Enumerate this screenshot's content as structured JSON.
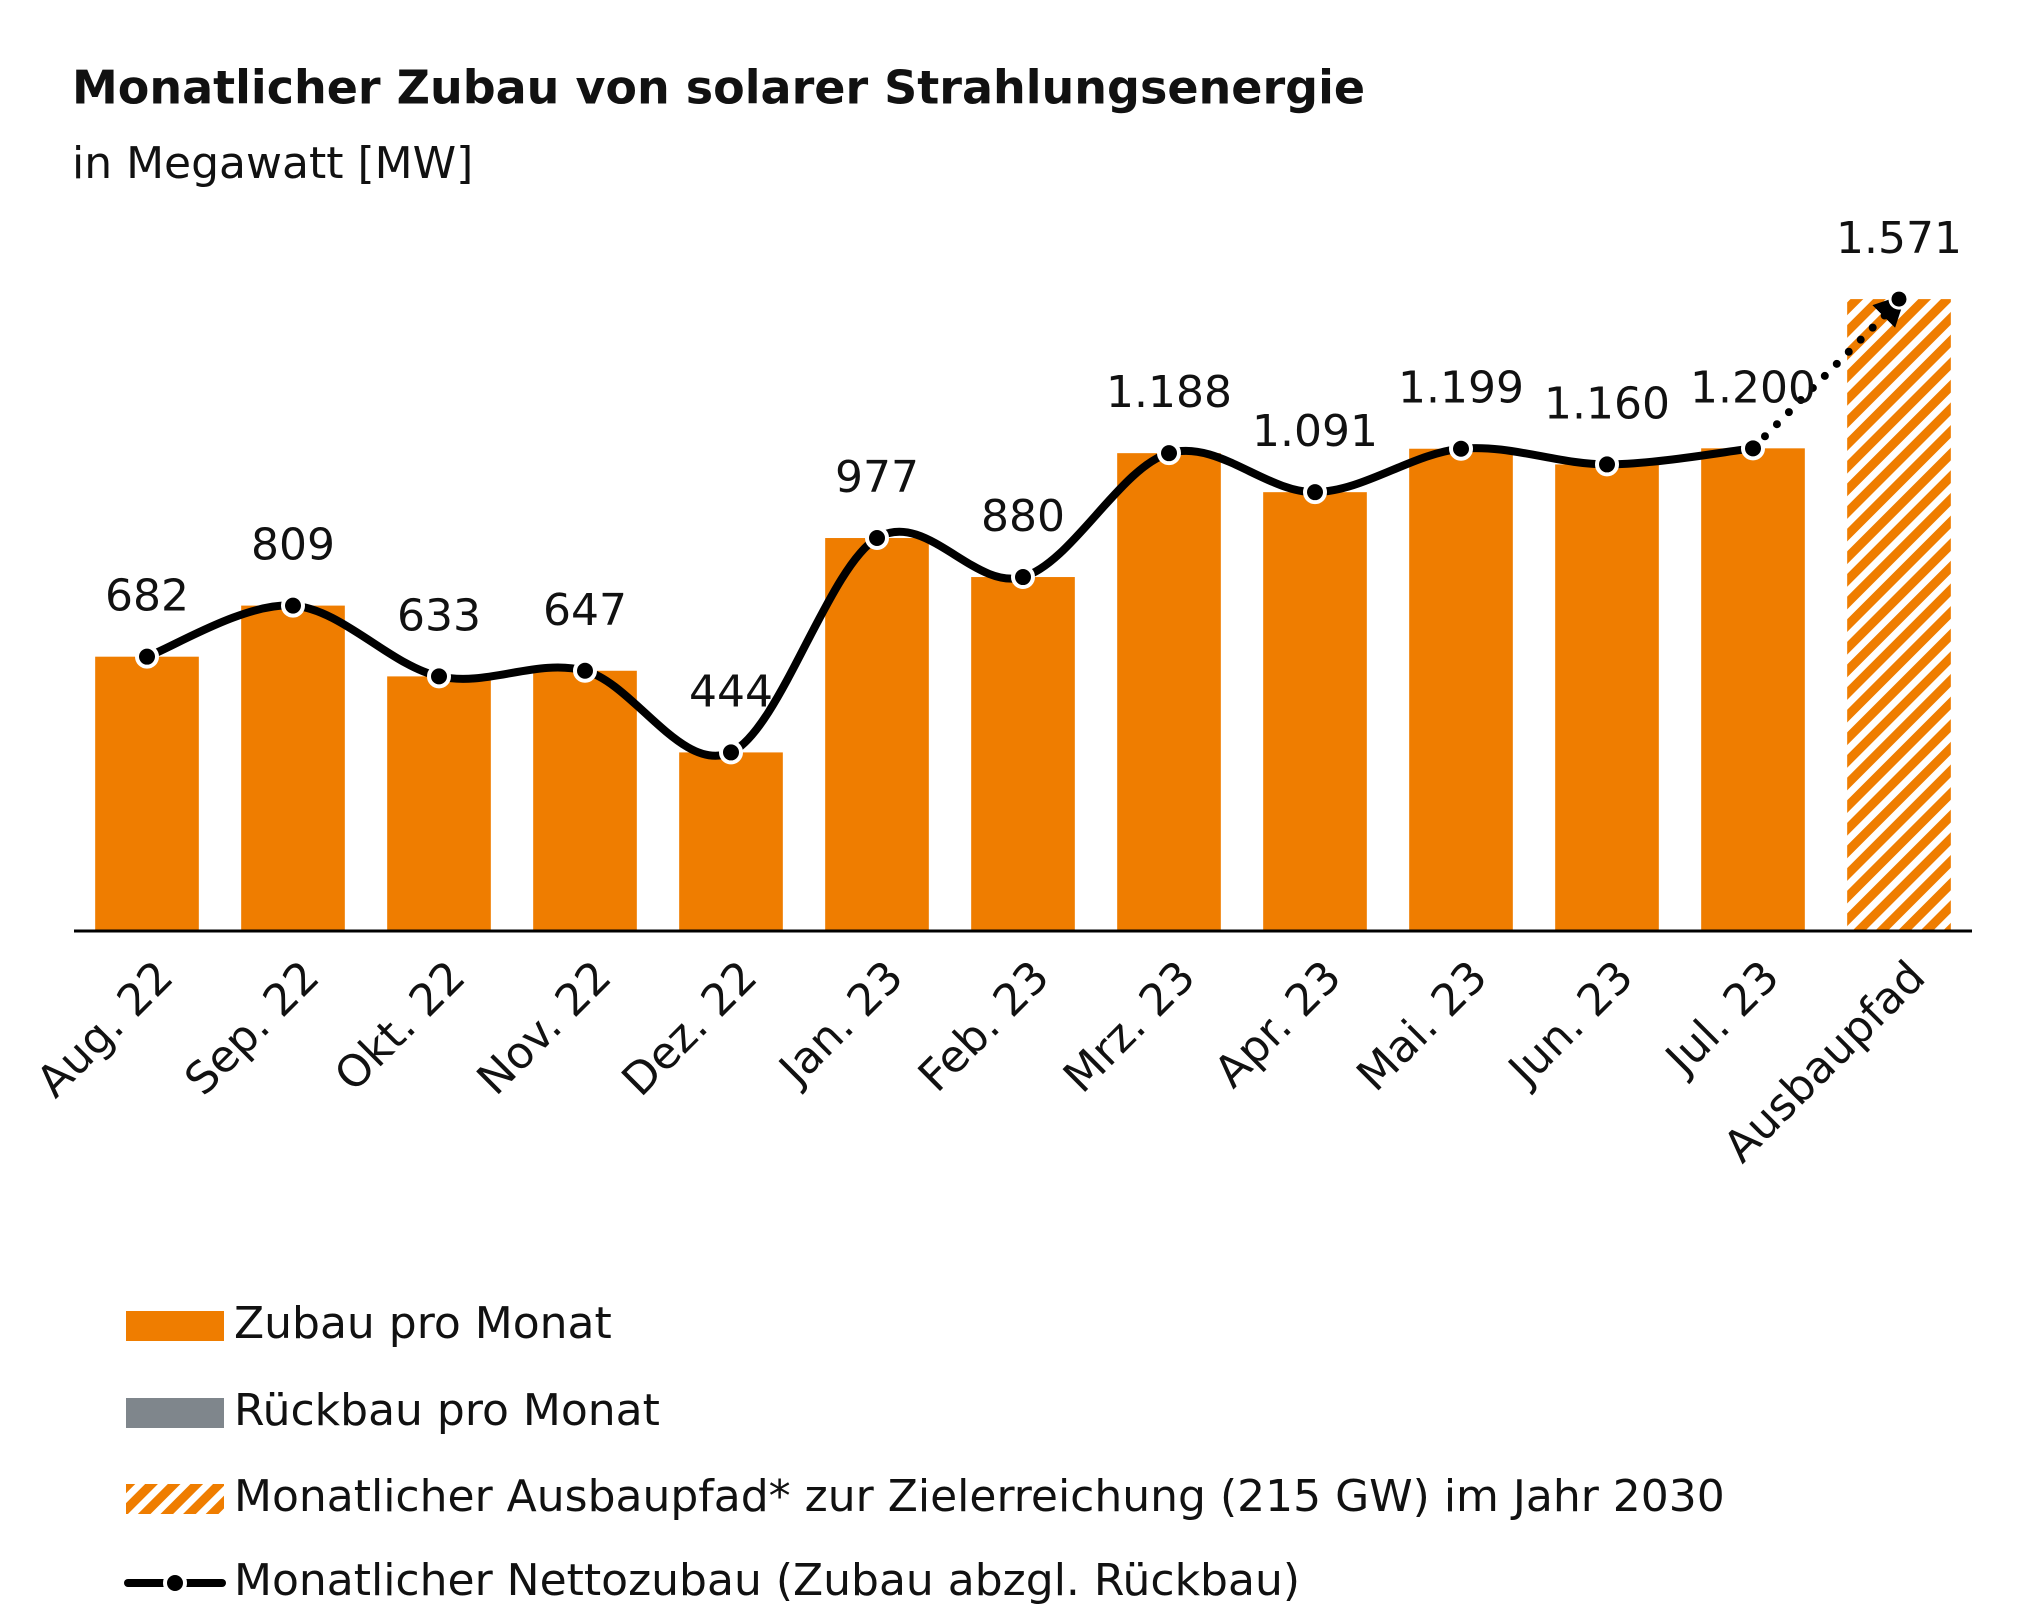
{
  "chart_data": {
    "type": "bar",
    "title": "Monatlicher Zubau von solarer Strahlungsenergie",
    "subtitle": "in Megawatt [MW]",
    "categories": [
      "Aug. 22",
      "Sep. 22",
      "Okt. 22",
      "Nov. 22",
      "Dez. 22",
      "Jan. 23",
      "Feb. 23",
      "Mrz. 23",
      "Apr. 23",
      "Mai. 23",
      "Jun. 23",
      "Jul. 23",
      "Ausbaupfad"
    ],
    "ylim": [
      0,
      1800
    ],
    "series": [
      {
        "name": "Zubau pro Monat",
        "color": "#ef7d00",
        "values": [
          682,
          809,
          633,
          647,
          444,
          977,
          880,
          1188,
          1091,
          1199,
          1160,
          1200,
          null
        ]
      },
      {
        "name": "Rückbau pro Monat",
        "color": "#7f868c",
        "values": [
          null,
          null,
          null,
          null,
          null,
          null,
          null,
          null,
          null,
          null,
          null,
          null,
          null
        ]
      },
      {
        "name": "Monatlicher Ausbaupfad* zur Zielerreichung (215 GW) im Jahr 2030",
        "color": "#ef7d00",
        "hatched": true,
        "values": [
          null,
          null,
          null,
          null,
          null,
          null,
          null,
          null,
          null,
          null,
          null,
          null,
          1571
        ],
        "value_labels": [
          null,
          null,
          null,
          null,
          null,
          null,
          null,
          null,
          null,
          null,
          null,
          null,
          "1.571"
        ]
      },
      {
        "name": "Monatlicher Nettozubau (Zubau abzgl. Rückbau)",
        "type": "line",
        "color": "#000000",
        "values": [
          682,
          809,
          633,
          647,
          444,
          977,
          880,
          1188,
          1091,
          1199,
          1160,
          1200,
          null
        ],
        "value_labels": [
          "682",
          "809",
          "633",
          "647",
          "444",
          "977",
          "880",
          "1.188",
          "1.091",
          "1.199",
          "1.160",
          "1.200",
          null
        ]
      }
    ]
  }
}
